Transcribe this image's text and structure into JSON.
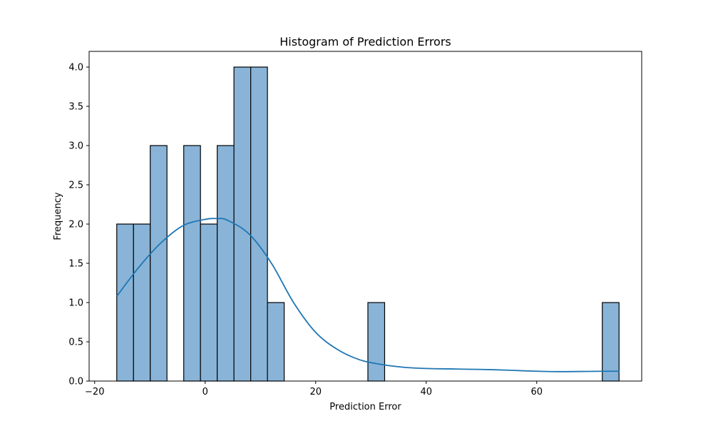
{
  "chart_data": {
    "type": "bar",
    "title": "Histogram of Prediction Errors",
    "xlabel": "Prediction Error",
    "ylabel": "Frequency",
    "xlim": [
      -21,
      79
    ],
    "ylim": [
      0,
      4.2
    ],
    "xticks": [
      -20,
      0,
      20,
      40,
      60
    ],
    "xtick_labels": [
      "−20",
      "0",
      "20",
      "40",
      "60"
    ],
    "yticks": [
      0.0,
      0.5,
      1.0,
      1.5,
      2.0,
      2.5,
      3.0,
      3.5,
      4.0
    ],
    "ytick_labels": [
      "0.0",
      "0.5",
      "1.0",
      "1.5",
      "2.0",
      "2.5",
      "3.0",
      "3.5",
      "4.0"
    ],
    "grid": false,
    "bins": {
      "start": -16.0,
      "width": 3.03,
      "counts": [
        2,
        2,
        3,
        0,
        3,
        2,
        3,
        4,
        4,
        1,
        0,
        0,
        0,
        0,
        0,
        1,
        0,
        0,
        0,
        0,
        0,
        0,
        0,
        0,
        0,
        0,
        0,
        0,
        0,
        1
      ]
    },
    "kde": {
      "x": [
        -16,
        -12,
        -8,
        -4,
        0,
        2,
        4,
        8,
        12,
        16,
        20,
        24,
        28,
        32,
        36,
        40,
        44,
        48,
        52,
        56,
        60,
        64,
        68,
        72,
        75
      ],
      "y": [
        1.08,
        1.45,
        1.76,
        1.98,
        2.06,
        2.07,
        2.05,
        1.87,
        1.5,
        1.0,
        0.62,
        0.4,
        0.27,
        0.21,
        0.175,
        0.16,
        0.155,
        0.15,
        0.145,
        0.135,
        0.125,
        0.12,
        0.122,
        0.125,
        0.125
      ]
    },
    "colors": {
      "bar_fill": "#89b4d8",
      "bar_edge": "#000000",
      "kde_line": "#1f77b4"
    }
  }
}
